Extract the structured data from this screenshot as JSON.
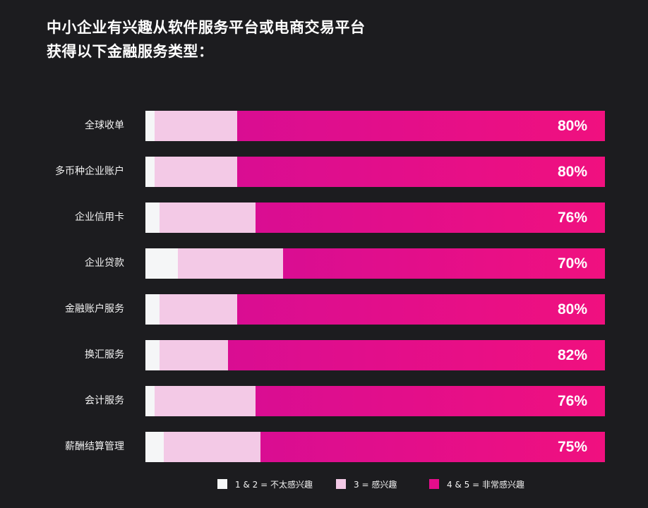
{
  "title_line1": "中小企业有兴趣从软件服务平台或电商交易平台",
  "title_line2": "获得以下金融服务类型：",
  "colors": {
    "background": "#1c1c1f",
    "not_interested": "#f5f6f7",
    "interested": "#f3c9e6",
    "very_interested": "#e60d8c"
  },
  "chart_data": {
    "type": "bar",
    "orientation": "horizontal",
    "stacked": true,
    "normalized": true,
    "categories": [
      "全球收单",
      "多币种企业账户",
      "企业信用卡",
      "企业贷款",
      "金融账户服务",
      "换汇服务",
      "会计服务",
      "薪酬结算管理"
    ],
    "series": [
      {
        "name": "1 & 2 = 不太感兴趣",
        "values": [
          2,
          2,
          3,
          7,
          3,
          3,
          2,
          4
        ]
      },
      {
        "name": "3 = 感兴趣",
        "values": [
          18,
          18,
          21,
          23,
          17,
          15,
          22,
          21
        ]
      },
      {
        "name": "4 & 5 = 非常感兴趣",
        "values": [
          80,
          80,
          76,
          70,
          80,
          82,
          76,
          75
        ]
      }
    ],
    "data_labels": [
      "80%",
      "80%",
      "76%",
      "70%",
      "80%",
      "82%",
      "76%",
      "75%"
    ],
    "legend_position": "bottom",
    "grid": false
  }
}
